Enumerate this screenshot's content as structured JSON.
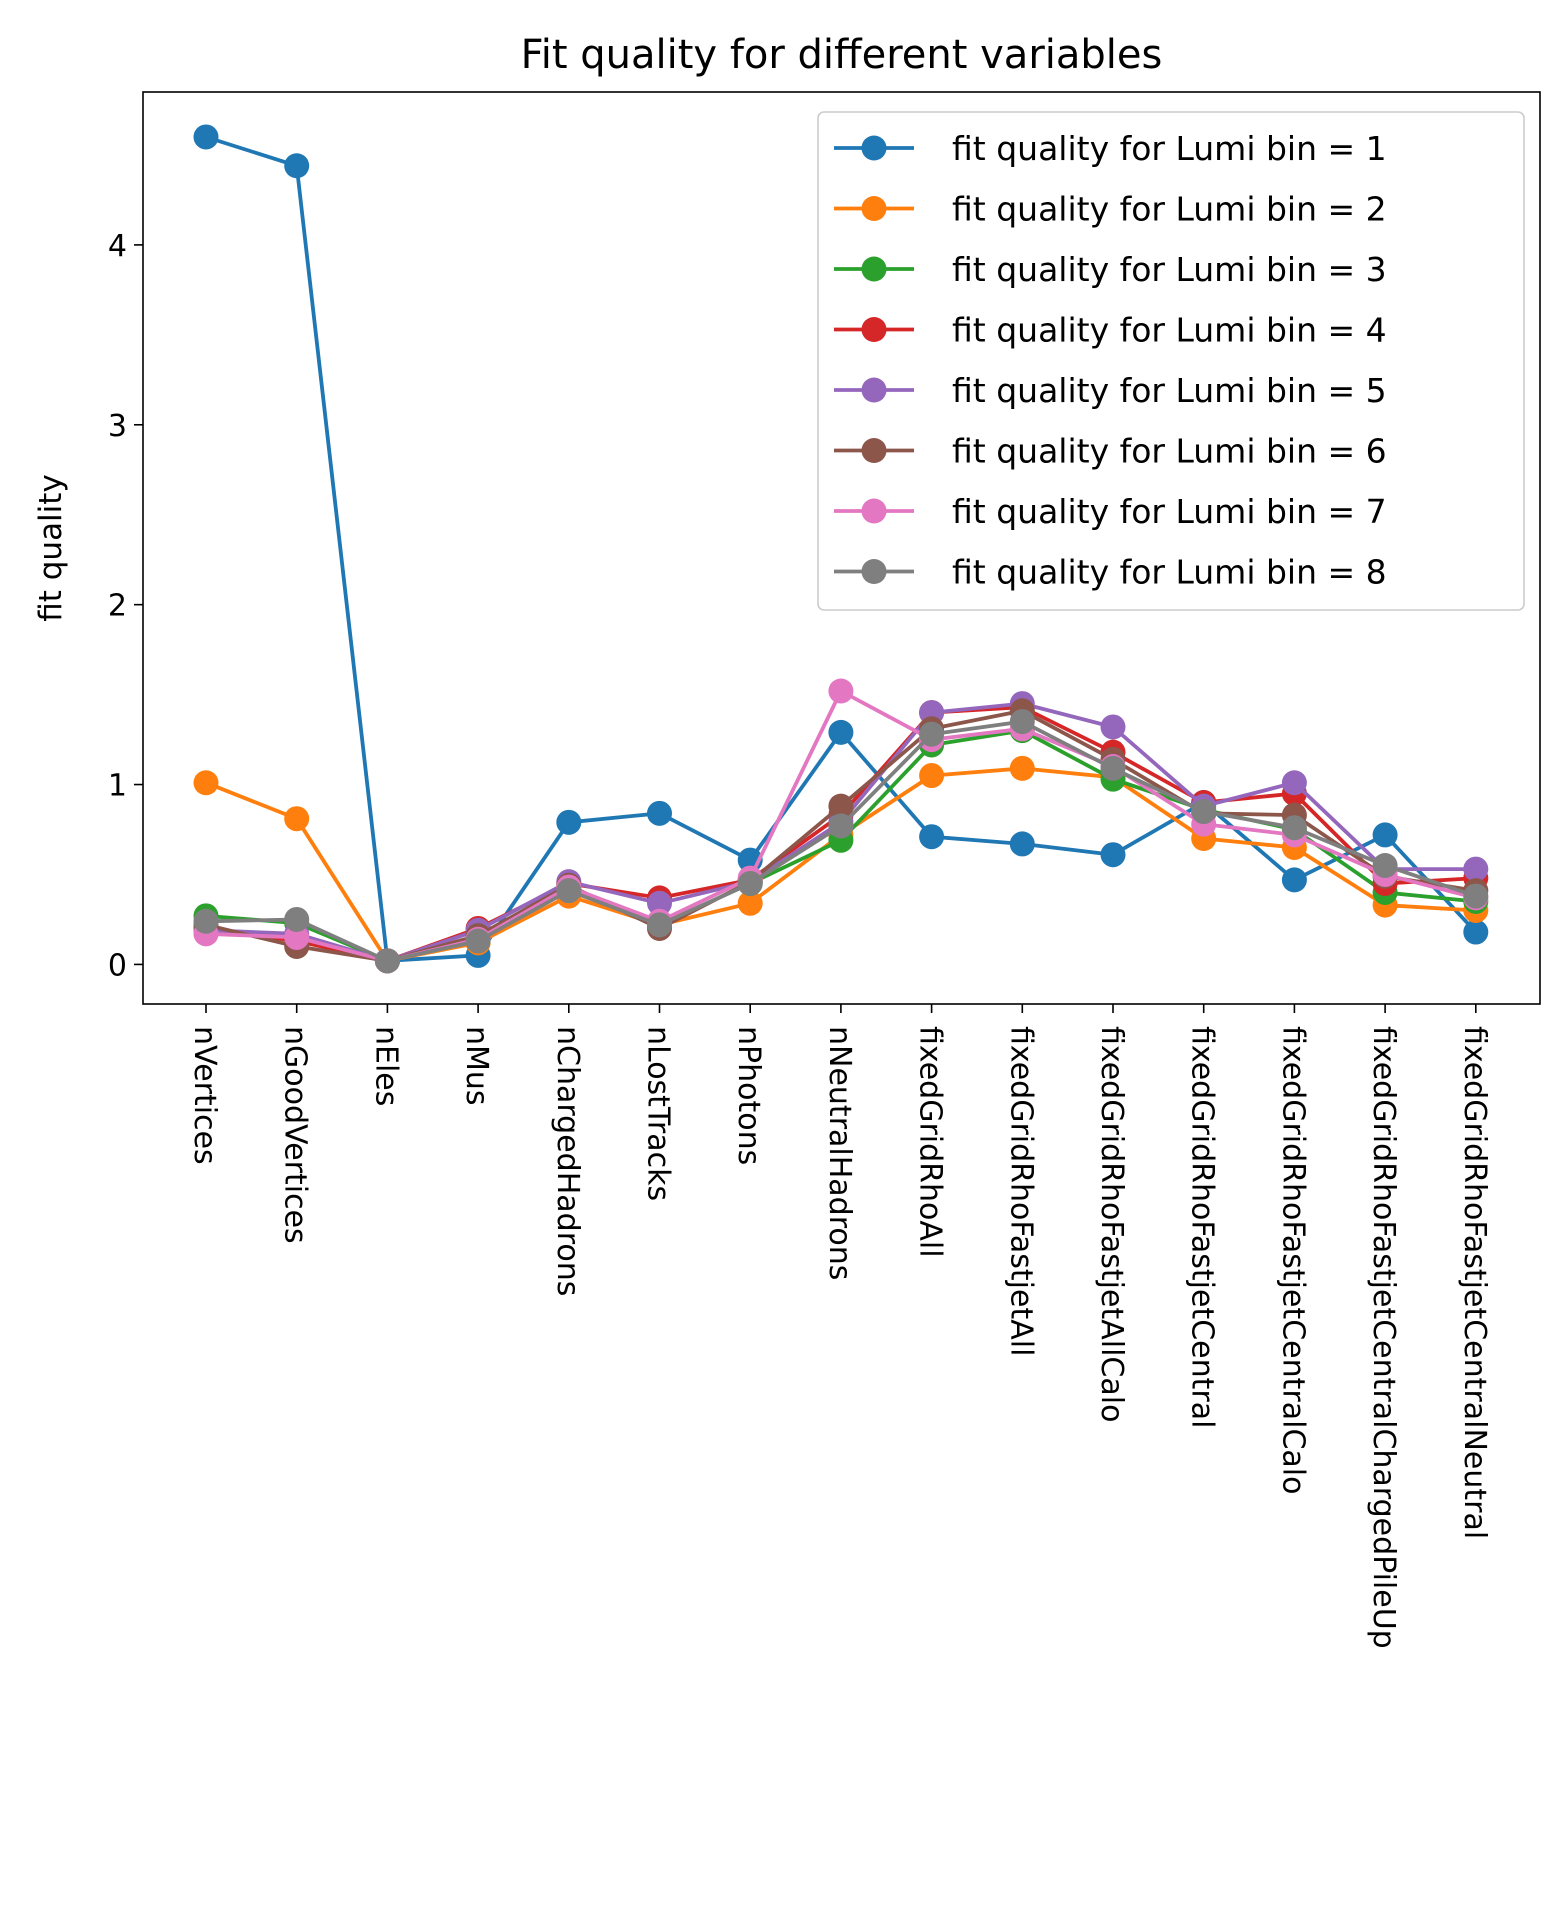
{
  "chart_data": {
    "type": "line",
    "title": "Fit quality for different variables",
    "xlabel": "",
    "ylabel": "fit quality",
    "ylim": [
      -0.22,
      4.85
    ],
    "yticks": [
      0,
      1,
      2,
      3,
      4
    ],
    "grid": false,
    "legend_position": "top-right",
    "categories": [
      "nVertices",
      "nGoodVertices",
      "nEles",
      "nMus",
      "nChargedHadrons",
      "nLostTracks",
      "nPhotons",
      "nNeutralHadrons",
      "fixedGridRhoAll",
      "fixedGridRhoFastjetAll",
      "fixedGridRhoFastjetAllCalo",
      "fixedGridRhoFastjetCentral",
      "fixedGridRhoFastjetCentralCalo",
      "fixedGridRhoFastjetCentralChargedPileUp",
      "fixedGridRhoFastjetCentralNeutral"
    ],
    "series": [
      {
        "name": "fit quality for Lumi bin = 1",
        "color": "#1f77b4",
        "values": [
          4.6,
          4.44,
          0.02,
          0.05,
          0.79,
          0.84,
          0.58,
          1.29,
          0.71,
          0.67,
          0.61,
          0.9,
          0.47,
          0.72,
          0.18
        ]
      },
      {
        "name": "fit quality for Lumi bin = 2",
        "color": "#ff7f0e",
        "values": [
          1.01,
          0.81,
          0.02,
          0.12,
          0.38,
          0.22,
          0.34,
          0.72,
          1.05,
          1.09,
          1.04,
          0.7,
          0.65,
          0.33,
          0.3
        ]
      },
      {
        "name": "fit quality for Lumi bin = 3",
        "color": "#2ca02c",
        "values": [
          0.27,
          0.23,
          0.02,
          0.15,
          0.42,
          0.22,
          0.45,
          0.69,
          1.22,
          1.3,
          1.03,
          0.86,
          0.75,
          0.4,
          0.35
        ]
      },
      {
        "name": "fit quality for Lumi bin = 4",
        "color": "#d62728",
        "values": [
          0.2,
          0.13,
          0.02,
          0.2,
          0.45,
          0.37,
          0.47,
          0.83,
          1.4,
          1.43,
          1.18,
          0.9,
          0.95,
          0.45,
          0.48
        ]
      },
      {
        "name": "fit quality for Lumi bin = 5",
        "color": "#9467bd",
        "values": [
          0.19,
          0.17,
          0.02,
          0.19,
          0.46,
          0.34,
          0.46,
          0.79,
          1.4,
          1.45,
          1.32,
          0.88,
          1.01,
          0.53,
          0.53
        ]
      },
      {
        "name": "fit quality for Lumi bin = 6",
        "color": "#8c564b",
        "values": [
          0.22,
          0.1,
          0.02,
          0.16,
          0.44,
          0.2,
          0.46,
          0.88,
          1.31,
          1.41,
          1.14,
          0.84,
          0.83,
          0.49,
          0.41
        ]
      },
      {
        "name": "fit quality for Lumi bin = 7",
        "color": "#e377c2",
        "values": [
          0.17,
          0.15,
          0.02,
          0.14,
          0.43,
          0.24,
          0.48,
          1.52,
          1.25,
          1.31,
          1.1,
          0.78,
          0.72,
          0.5,
          0.37
        ]
      },
      {
        "name": "fit quality for Lumi bin = 8",
        "color": "#7f7f7f",
        "values": [
          0.24,
          0.25,
          0.02,
          0.13,
          0.41,
          0.22,
          0.45,
          0.77,
          1.28,
          1.35,
          1.09,
          0.85,
          0.76,
          0.55,
          0.38
        ]
      }
    ]
  }
}
